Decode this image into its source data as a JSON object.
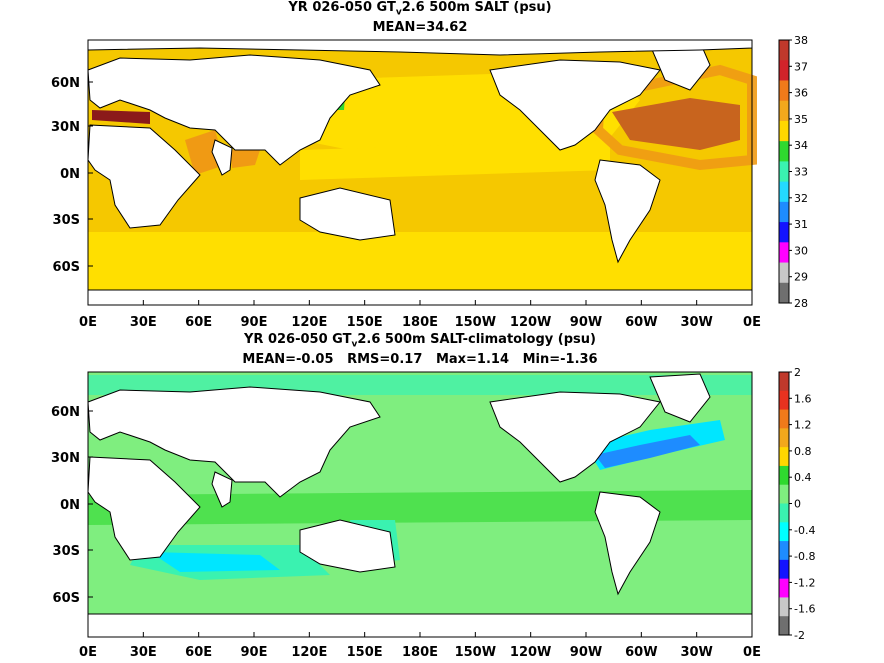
{
  "panels": [
    {
      "title_pre": "YR 026-050 GT",
      "title_sub": "v",
      "title_post": "2.6 500m SALT (psu)",
      "stats": "MEAN=34.62",
      "colorbar": {
        "labels": [
          "38",
          "37",
          "36",
          "35",
          "34",
          "33",
          "32",
          "31",
          "30",
          "29",
          "28"
        ],
        "colors": [
          "#c0392b",
          "#d1232a",
          "#f07a1a",
          "#f2a81c",
          "#ffd700",
          "#2fd92f",
          "#3af2b0",
          "#24d9ff",
          "#1e8cff",
          "#1414ff",
          "#ff00ff",
          "#c8c8c8",
          "#6f6f6f"
        ]
      }
    },
    {
      "title_pre": "YR 026-050 GT",
      "title_sub": "v",
      "title_post": "2.6 500m SALT-climatology (psu)",
      "stats": "MEAN=-0.05   RMS=0.17   Max=1.14   Min=-1.36",
      "colorbar": {
        "labels": [
          "2",
          "1.6",
          "1.2",
          "0.8",
          "0.4",
          "0",
          "-0.4",
          "-0.8",
          "-1.2",
          "-1.6",
          "-2"
        ],
        "colors": [
          "#c0392b",
          "#e8321f",
          "#f07a1a",
          "#f2a81c",
          "#ffd700",
          "#2fd92f",
          "#7fee7f",
          "#3af2b0",
          "#00ffff",
          "#1e8cff",
          "#1414ff",
          "#ff00ff",
          "#c8c8c8",
          "#6f6f6f"
        ]
      }
    }
  ],
  "x_ticks": [
    "0E",
    "30E",
    "60E",
    "90E",
    "120E",
    "150E",
    "180E",
    "150W",
    "120W",
    "90W",
    "60W",
    "30W",
    "0E"
  ],
  "y_ticks": [
    "60N",
    "30N",
    "0N",
    "30S",
    "60S"
  ]
}
